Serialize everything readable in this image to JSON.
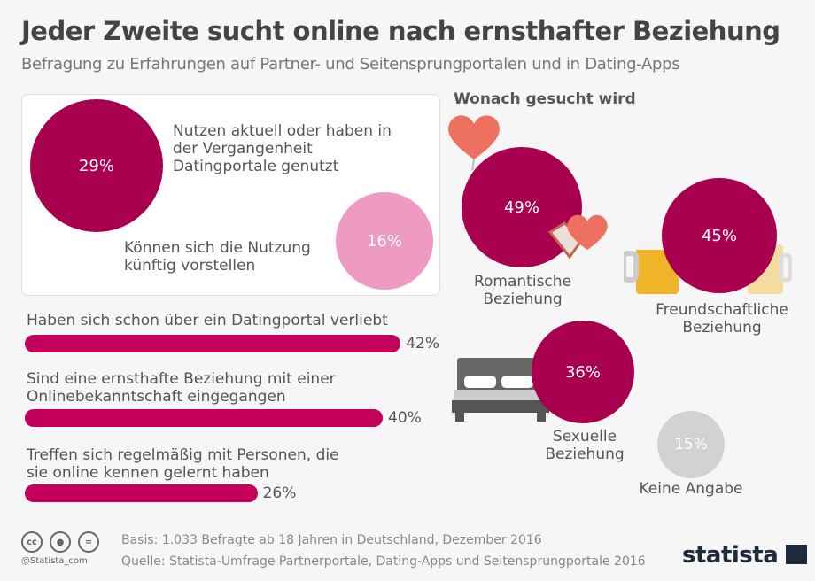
{
  "title": "Jeder Zweite sucht online nach ernsthafter Beziehung",
  "subtitle": "Befragung zu Erfahrungen auf Partner- und Seitensprungportalen und in Dating-Apps",
  "colors": {
    "primary": "#a8004f",
    "bar": "#c4005a",
    "light_pink": "#ee9ac2",
    "gray": "#d2d2d2",
    "heart": "#ee7060"
  },
  "chart_data": [
    {
      "type": "bubble",
      "items": [
        {
          "label": "Nutzen aktuell oder haben in der Vergangenheit Datingportale genutzt",
          "value": 29,
          "value_label": "29%"
        },
        {
          "label": "Können sich die Nutzung künftig vorstellen",
          "value": 16,
          "value_label": "16%"
        }
      ]
    },
    {
      "type": "bar",
      "orientation": "horizontal",
      "xlim": [
        0,
        100
      ],
      "categories": [
        "Haben sich schon über ein Datingportal verliebt",
        "Sind eine ernsthafte Beziehung mit einer Onlinebekanntschaft eingegangen",
        "Treffen sich regelmäßig mit Personen, die sie online kennen gelernt haben"
      ],
      "values": [
        42,
        40,
        26
      ],
      "value_labels": [
        "42%",
        "40%",
        "26%"
      ]
    },
    {
      "type": "bubble",
      "title": "Wonach gesucht wird",
      "items": [
        {
          "label": "Romantische Beziehung",
          "value": 49,
          "value_label": "49%",
          "icon": "heart-balloon-icon"
        },
        {
          "label": "Freundschaftliche Beziehung",
          "value": 45,
          "value_label": "45%",
          "icon": "beer-mugs-icon"
        },
        {
          "label": "Sexuelle Beziehung",
          "value": 36,
          "value_label": "36%",
          "icon": "bed-icon"
        },
        {
          "label": "Keine Angabe",
          "value": 15,
          "value_label": "15%"
        }
      ]
    }
  ],
  "footer": {
    "basis": "Basis: 1.033 Befragte ab 18 Jahren in Deutschland, Dezember 2016",
    "source": "Quelle: Statista-Umfrage Partnerportale, Dating-Apps und Seitensprungportale 2016",
    "handle": "@Statista_com",
    "logo": "statista",
    "cc": "cc",
    "eq": "="
  }
}
